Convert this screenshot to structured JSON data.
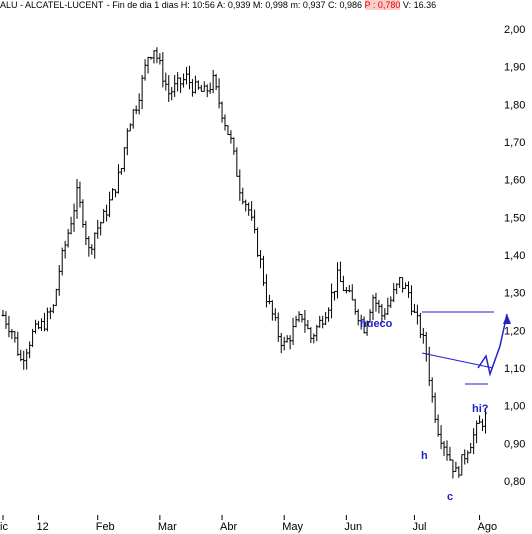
{
  "header": {
    "symbol": "ALU - ALCATEL-LUCENT",
    "period": "Fin de dia 1 dias",
    "h": "H: 10:56",
    "a": "A: 0,939",
    "m_max": "M: 0,998",
    "m_min": "m: 0,937",
    "c": "C: 0,986",
    "p": "P : 0,780",
    "v": "V: 16.36"
  },
  "chart_data": {
    "type": "candlestick",
    "title": "",
    "xlabel": "",
    "ylabel": "",
    "ylim": [
      0.77,
      2.02
    ],
    "y_ticks": [
      2.0,
      1.9,
      1.8,
      1.7,
      1.6,
      1.5,
      1.4,
      1.3,
      1.2,
      1.1,
      1.0,
      0.9,
      0.8
    ],
    "y_tick_labels": [
      "2,00",
      "1,90",
      "1,80",
      "1,70",
      "1,60",
      "1,50",
      "1,40",
      "1,30",
      "1,20",
      "1,10",
      "1,00",
      "0,90",
      "0,80"
    ],
    "x_tick_labels": [
      "ic",
      "12",
      "Feb",
      "Mar",
      "Abr",
      "May",
      "Jun",
      "Jul",
      "Ago"
    ],
    "x_tick_bars": [
      0,
      12,
      32,
      53,
      74,
      95,
      116,
      139,
      161
    ],
    "grid": false,
    "colors": {
      "bars": "#000000",
      "annotation": "#2222cc"
    },
    "price_path": [
      [
        0,
        1.24
      ],
      [
        3,
        1.2
      ],
      [
        6,
        1.12
      ],
      [
        10,
        1.19
      ],
      [
        14,
        1.22
      ],
      [
        17,
        1.26
      ],
      [
        19,
        1.36
      ],
      [
        22,
        1.46
      ],
      [
        25,
        1.56
      ],
      [
        27,
        1.5
      ],
      [
        29,
        1.41
      ],
      [
        31,
        1.46
      ],
      [
        34,
        1.5
      ],
      [
        37,
        1.56
      ],
      [
        40,
        1.63
      ],
      [
        42,
        1.74
      ],
      [
        45,
        1.8
      ],
      [
        47,
        1.86
      ],
      [
        49,
        1.93
      ],
      [
        51,
        1.95
      ],
      [
        53,
        1.9
      ],
      [
        56,
        1.83
      ],
      [
        59,
        1.85
      ],
      [
        62,
        1.87
      ],
      [
        65,
        1.84
      ],
      [
        68,
        1.83
      ],
      [
        71,
        1.86
      ],
      [
        74,
        1.78
      ],
      [
        77,
        1.7
      ],
      [
        80,
        1.58
      ],
      [
        83,
        1.52
      ],
      [
        85,
        1.45
      ],
      [
        87,
        1.38
      ],
      [
        89,
        1.29
      ],
      [
        91,
        1.24
      ],
      [
        93,
        1.19
      ],
      [
        95,
        1.16
      ],
      [
        98,
        1.2
      ],
      [
        101,
        1.24
      ],
      [
        104,
        1.18
      ],
      [
        107,
        1.22
      ],
      [
        110,
        1.27
      ],
      [
        113,
        1.34
      ],
      [
        116,
        1.3
      ],
      [
        119,
        1.26
      ],
      [
        122,
        1.21
      ],
      [
        125,
        1.29
      ],
      [
        128,
        1.24
      ],
      [
        131,
        1.28
      ],
      [
        134,
        1.33
      ],
      [
        137,
        1.3
      ],
      [
        139,
        1.24
      ],
      [
        141,
        1.2
      ],
      [
        143,
        1.14
      ],
      [
        145,
        1.02
      ],
      [
        147,
        0.94
      ],
      [
        149,
        0.9
      ],
      [
        151,
        0.86
      ],
      [
        153,
        0.82
      ],
      [
        155,
        0.85
      ],
      [
        157,
        0.89
      ],
      [
        159,
        0.92
      ],
      [
        161,
        0.95
      ],
      [
        163,
        0.97
      ]
    ],
    "annotations": [
      {
        "text": "hueco",
        "type": "label"
      },
      {
        "text": "h",
        "type": "label"
      },
      {
        "text": "c",
        "type": "label"
      },
      {
        "text": "hi?",
        "type": "label"
      }
    ]
  }
}
